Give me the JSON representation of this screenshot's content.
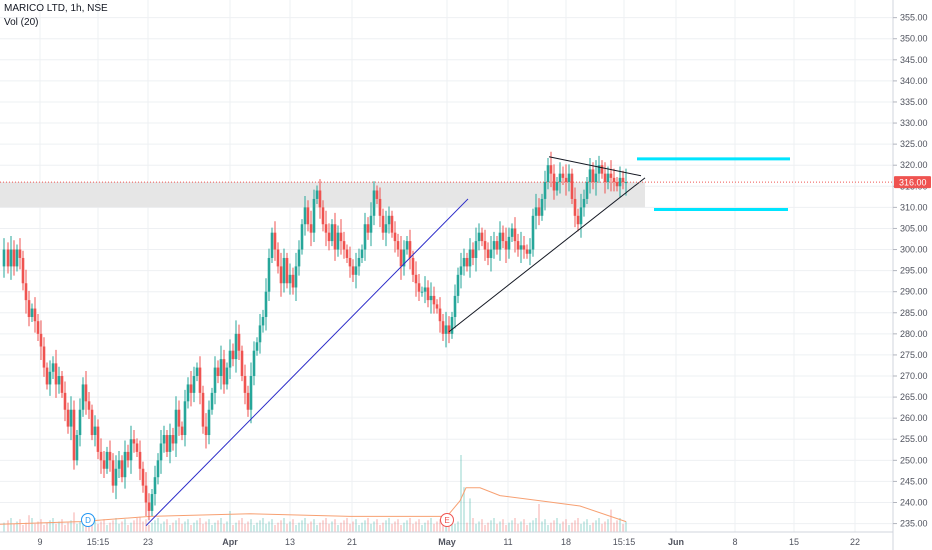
{
  "header": {
    "symbol_line": "MARICO LTD, 1h, NSE",
    "volume_label": "Vol (20)"
  },
  "colors": {
    "up": "#26a69a",
    "down": "#ef5350",
    "trendline_blue": "#2929c8",
    "triangle_lines": "#131722",
    "target_lines": "#00e5ff",
    "resistance_zone": "#e6e6e6",
    "price_line": "#ef5350",
    "volume_ma": "#f7a072"
  },
  "chart_data": {
    "type": "candlestick",
    "instrument": "MARICO LTD",
    "interval": "1h",
    "exchange": "NSE",
    "ylim": [
      233,
      358
    ],
    "y_ticks": [
      "355.00",
      "350.00",
      "345.00",
      "340.00",
      "335.00",
      "330.00",
      "325.00",
      "320.00",
      "315.00",
      "310.00",
      "305.00",
      "300.00",
      "295.00",
      "290.00",
      "285.00",
      "280.00",
      "275.00",
      "270.00",
      "265.00",
      "260.00",
      "255.00",
      "250.00",
      "245.00",
      "240.00",
      "235.00"
    ],
    "x_ticks": [
      "9",
      "15:15",
      "23",
      "Apr",
      "13",
      "21",
      "May",
      "11",
      "18",
      "15:15",
      "Jun",
      "8",
      "15",
      "22"
    ],
    "last_price_label": "316.00",
    "last_price": 316,
    "resistance_zone": [
      310,
      316
    ],
    "close_path": [
      [
        0,
        296
      ],
      [
        4,
        300
      ],
      [
        8,
        296
      ],
      [
        11,
        300
      ],
      [
        14,
        296
      ],
      [
        17,
        300
      ],
      [
        20,
        298
      ],
      [
        23,
        292
      ],
      [
        26,
        288
      ],
      [
        29,
        284
      ],
      [
        32,
        286
      ],
      [
        35,
        283
      ],
      [
        38,
        280
      ],
      [
        41,
        277
      ],
      [
        44,
        272
      ],
      [
        47,
        268
      ],
      [
        50,
        271
      ],
      [
        53,
        273
      ],
      [
        56,
        268
      ],
      [
        59,
        270
      ],
      [
        62,
        266
      ],
      [
        65,
        262
      ],
      [
        68,
        258
      ],
      [
        71,
        262
      ],
      [
        74,
        250
      ],
      [
        77,
        256
      ],
      [
        80,
        262
      ],
      [
        83,
        268
      ],
      [
        86,
        264
      ],
      [
        89,
        262
      ],
      [
        92,
        256
      ],
      [
        95,
        258
      ],
      [
        98,
        252
      ],
      [
        101,
        250
      ],
      [
        104,
        248
      ],
      [
        107,
        252
      ],
      [
        110,
        250
      ],
      [
        113,
        244
      ],
      [
        116,
        248
      ],
      [
        119,
        250
      ],
      [
        122,
        246
      ],
      [
        125,
        252
      ],
      [
        128,
        250
      ],
      [
        131,
        255
      ],
      [
        134,
        254
      ],
      [
        137,
        252
      ],
      [
        140,
        248
      ],
      [
        143,
        244
      ],
      [
        146,
        240
      ],
      [
        149,
        238
      ],
      [
        152,
        242
      ],
      [
        155,
        246
      ],
      [
        158,
        250
      ],
      [
        161,
        254
      ],
      [
        164,
        256
      ],
      [
        167,
        252
      ],
      [
        170,
        256
      ],
      [
        173,
        254
      ],
      [
        176,
        262
      ],
      [
        179,
        258
      ],
      [
        182,
        256
      ],
      [
        185,
        264
      ],
      [
        188,
        268
      ],
      [
        191,
        266
      ],
      [
        194,
        270
      ],
      [
        197,
        272
      ],
      [
        200,
        266
      ],
      [
        203,
        258
      ],
      [
        206,
        256
      ],
      [
        209,
        262
      ],
      [
        212,
        266
      ],
      [
        215,
        272
      ],
      [
        218,
        270
      ],
      [
        221,
        274
      ],
      [
        224,
        268
      ],
      [
        227,
        272
      ],
      [
        230,
        276
      ],
      [
        233,
        274
      ],
      [
        236,
        280
      ],
      [
        239,
        276
      ],
      [
        242,
        270
      ],
      [
        245,
        266
      ],
      [
        248,
        262
      ],
      [
        251,
        270
      ],
      [
        254,
        276
      ],
      [
        257,
        278
      ],
      [
        260,
        282
      ],
      [
        263,
        284
      ],
      [
        266,
        290
      ],
      [
        269,
        298
      ],
      [
        272,
        304
      ],
      [
        275,
        300
      ],
      [
        278,
        296
      ],
      [
        281,
        292
      ],
      [
        284,
        298
      ],
      [
        287,
        292
      ],
      [
        290,
        294
      ],
      [
        293,
        291
      ],
      [
        296,
        296
      ],
      [
        299,
        300
      ],
      [
        302,
        306
      ],
      [
        305,
        310
      ],
      [
        308,
        306
      ],
      [
        311,
        304
      ],
      [
        314,
        312
      ],
      [
        317,
        314
      ],
      [
        320,
        310
      ],
      [
        323,
        306
      ],
      [
        326,
        304
      ],
      [
        329,
        302
      ],
      [
        332,
        306
      ],
      [
        335,
        300
      ],
      [
        338,
        304
      ],
      [
        341,
        302
      ],
      [
        344,
        300
      ],
      [
        347,
        298
      ],
      [
        350,
        296
      ],
      [
        353,
        294
      ],
      [
        356,
        296
      ],
      [
        359,
        298
      ],
      [
        362,
        300
      ],
      [
        365,
        306
      ],
      [
        368,
        304
      ],
      [
        371,
        308
      ],
      [
        374,
        314
      ],
      [
        377,
        312
      ],
      [
        380,
        308
      ],
      [
        383,
        304
      ],
      [
        386,
        306
      ],
      [
        389,
        308
      ],
      [
        392,
        304
      ],
      [
        395,
        302
      ],
      [
        398,
        300
      ],
      [
        401,
        296
      ],
      [
        404,
        300
      ],
      [
        407,
        302
      ],
      [
        410,
        298
      ],
      [
        413,
        294
      ],
      [
        416,
        292
      ],
      [
        419,
        290
      ],
      [
        422,
        290
      ],
      [
        425,
        291
      ],
      [
        428,
        288
      ],
      [
        431,
        289
      ],
      [
        434,
        287
      ],
      [
        437,
        286
      ],
      [
        440,
        283
      ],
      [
        443,
        280
      ],
      [
        446,
        282
      ],
      [
        449,
        280
      ],
      [
        452,
        284
      ],
      [
        455,
        289
      ],
      [
        458,
        294
      ],
      [
        461,
        296
      ],
      [
        464,
        298
      ],
      [
        467,
        296
      ],
      [
        470,
        300
      ],
      [
        473,
        298
      ],
      [
        476,
        302
      ],
      [
        479,
        304
      ],
      [
        482,
        302
      ],
      [
        485,
        300
      ],
      [
        488,
        298
      ],
      [
        491,
        300
      ],
      [
        494,
        302
      ],
      [
        497,
        300
      ],
      [
        500,
        304
      ],
      [
        503,
        302
      ],
      [
        506,
        300
      ],
      [
        509,
        303
      ],
      [
        512,
        305
      ],
      [
        515,
        302
      ],
      [
        518,
        300
      ],
      [
        521,
        301
      ],
      [
        524,
        300
      ],
      [
        527,
        299
      ],
      [
        530,
        300
      ],
      [
        533,
        308
      ],
      [
        536,
        310
      ],
      [
        539,
        308
      ],
      [
        542,
        312
      ],
      [
        545,
        316
      ],
      [
        548,
        320
      ],
      [
        551,
        318
      ],
      [
        554,
        314
      ],
      [
        557,
        316
      ],
      [
        560,
        318
      ],
      [
        563,
        317
      ],
      [
        566,
        316
      ],
      [
        569,
        318
      ],
      [
        572,
        312
      ],
      [
        575,
        308
      ],
      [
        578,
        306
      ],
      [
        581,
        310
      ],
      [
        584,
        312
      ],
      [
        587,
        316
      ],
      [
        590,
        319
      ],
      [
        593,
        316
      ],
      [
        596,
        318
      ],
      [
        599,
        320
      ],
      [
        602,
        318
      ],
      [
        605,
        316
      ],
      [
        608,
        318
      ],
      [
        611,
        317
      ],
      [
        614,
        316
      ],
      [
        617,
        315
      ],
      [
        620,
        317
      ],
      [
        623,
        316
      ],
      [
        626,
        316
      ]
    ],
    "annotations": [
      {
        "type": "trendline",
        "points": [
          [
            146,
            234.5
          ],
          [
            468,
            312
          ]
        ]
      },
      {
        "type": "trendline",
        "points": [
          [
            449,
            280.5
          ],
          [
            645,
            317
          ]
        ]
      },
      {
        "type": "trendline",
        "points": [
          [
            549,
            322
          ],
          [
            641,
            317.5
          ]
        ]
      },
      {
        "type": "horizontal_segment",
        "x": [
          637,
          790
        ],
        "y": 321.5
      },
      {
        "type": "horizontal_segment",
        "x": [
          654,
          788
        ],
        "y": 309.5
      }
    ],
    "event_markers": [
      {
        "label": "D",
        "color": "#2196f3",
        "x": 88
      },
      {
        "label": "E",
        "color": "#ef5350",
        "x": 447
      }
    ],
    "volume": {
      "label": "Vol (20)",
      "spikes": [
        [
          0,
          1.0
        ],
        [
          30,
          1.2
        ],
        [
          75,
          1.4
        ],
        [
          140,
          1.1
        ],
        [
          230,
          1.5
        ],
        [
          460,
          5.5
        ],
        [
          465,
          3.2
        ],
        [
          470,
          2.4
        ],
        [
          540,
          2.0
        ],
        [
          610,
          1.6
        ]
      ],
      "ma_path": [
        [
          0,
          3
        ],
        [
          80,
          4
        ],
        [
          150,
          6
        ],
        [
          250,
          7
        ],
        [
          350,
          6
        ],
        [
          420,
          6
        ],
        [
          447,
          6
        ],
        [
          460,
          12
        ],
        [
          466,
          17
        ],
        [
          480,
          17
        ],
        [
          500,
          14
        ],
        [
          540,
          12
        ],
        [
          580,
          10
        ],
        [
          626,
          4
        ]
      ]
    }
  }
}
